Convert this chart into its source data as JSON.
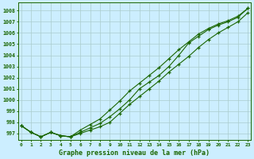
{
  "title": "Graphe pression niveau de la mer (hPa)",
  "bg_color": "#cceeff",
  "grid_color": "#aacccc",
  "line_color": "#1a6600",
  "x_labels": [
    "0",
    "1",
    "2",
    "3",
    "4",
    "5",
    "6",
    "7",
    "8",
    "9",
    "10",
    "11",
    "12",
    "13",
    "14",
    "15",
    "16",
    "17",
    "18",
    "19",
    "20",
    "21",
    "22",
    "23"
  ],
  "hours": [
    0,
    1,
    2,
    3,
    4,
    5,
    6,
    7,
    8,
    9,
    10,
    11,
    12,
    13,
    14,
    15,
    16,
    17,
    18,
    19,
    20,
    21,
    22,
    23
  ],
  "series_top": [
    997.7,
    997.1,
    996.7,
    997.1,
    996.8,
    996.7,
    997.3,
    997.8,
    998.3,
    999.1,
    999.9,
    1000.8,
    1001.5,
    1002.2,
    1002.9,
    1003.7,
    1004.5,
    1005.2,
    1005.9,
    1006.4,
    1006.8,
    1007.1,
    1007.5,
    1008.2
  ],
  "series_mid": [
    997.7,
    997.1,
    996.7,
    997.1,
    996.8,
    996.7,
    997.1,
    997.5,
    997.9,
    998.5,
    999.2,
    1000.0,
    1001.0,
    1001.6,
    1002.2,
    1003.0,
    1004.0,
    1005.1,
    1005.7,
    1006.3,
    1006.7,
    1007.0,
    1007.4,
    1008.2
  ],
  "series_bot": [
    997.7,
    997.1,
    996.7,
    997.1,
    996.8,
    996.7,
    997.0,
    997.3,
    997.6,
    998.0,
    998.8,
    999.6,
    1000.3,
    1001.0,
    1001.7,
    1002.5,
    1003.2,
    1003.9,
    1004.7,
    1005.4,
    1006.0,
    1006.5,
    1007.0,
    1007.8
  ],
  "ylim_min": 996.4,
  "ylim_max": 1008.7,
  "yticks": [
    997,
    998,
    999,
    1000,
    1001,
    1002,
    1003,
    1004,
    1005,
    1006,
    1007,
    1008
  ]
}
